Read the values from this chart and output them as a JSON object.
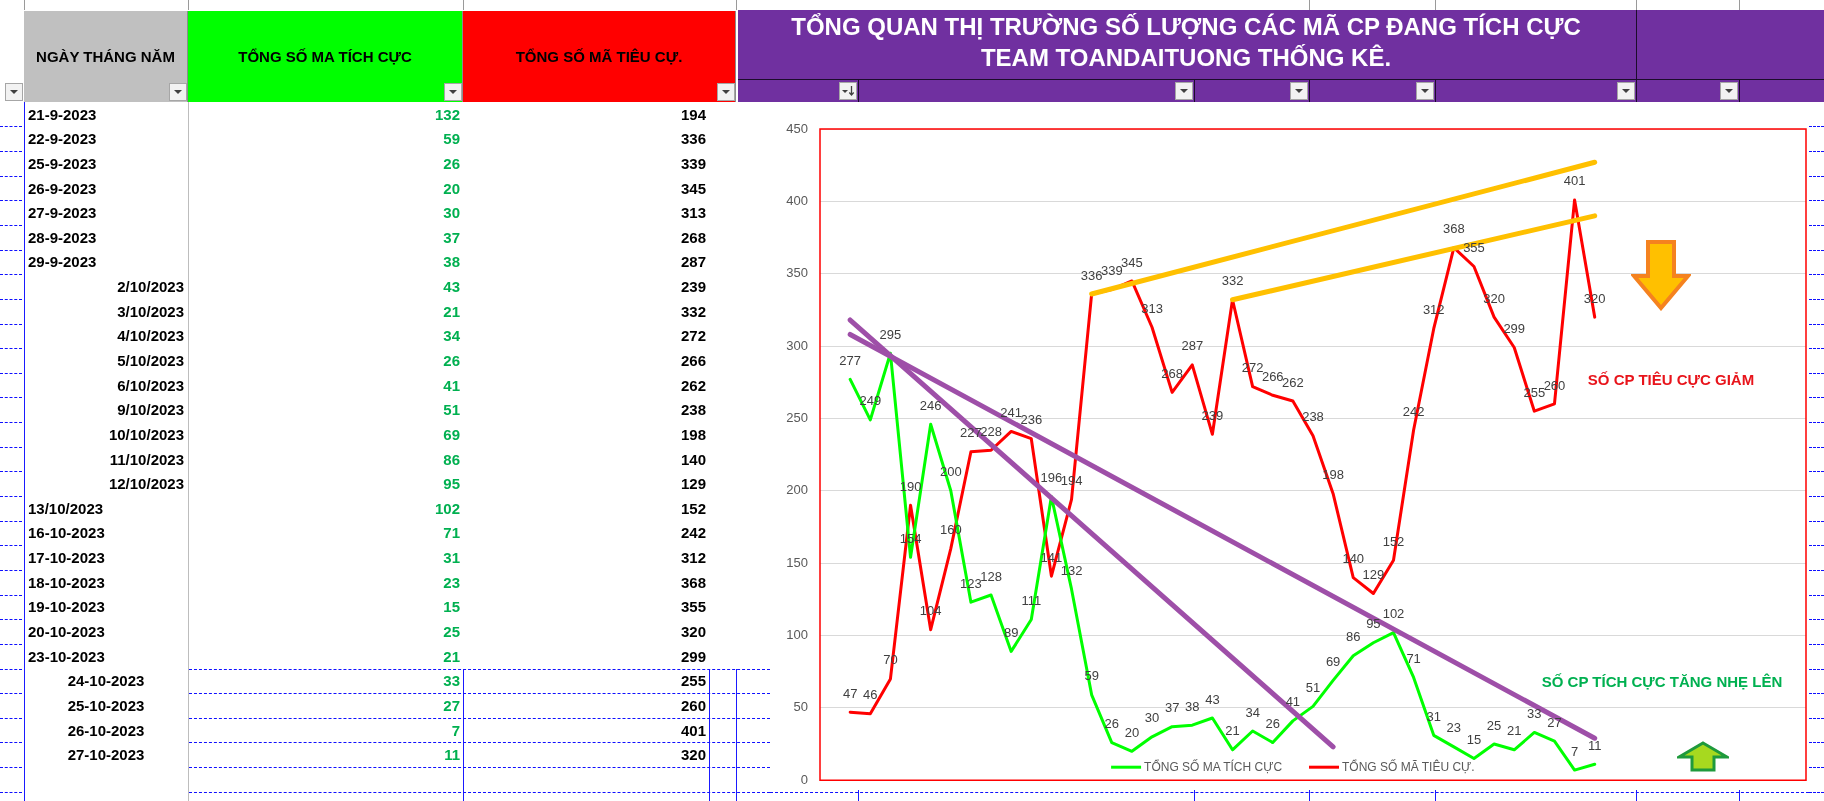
{
  "chart_data": [
    {
      "type": "other",
      "xlabel": "NGÀY THÁNG NĂM",
      "data_labels": true,
      "categories": [
        "21-9-2023",
        "22-9-2023",
        "25-9-2023",
        "26-9-2023",
        "27-9-2023",
        "28-9-2023",
        "29-9-2023",
        "2/10/2023",
        "3/10/2023",
        "4/10/2023",
        "5/10/2023",
        "6/10/2023",
        "9/10/2023",
        "10/10/2023",
        "11/10/2023",
        "12/10/2023",
        "13/10/2023",
        "16-10-2023",
        "17-10-2023",
        "18-10-2023",
        "19-10-2023",
        "20-10-2023",
        "23-10-2023",
        "24-10-2023",
        "25-10-2023",
        "26-10-2023",
        "27-10-2023"
      ],
      "series": [
        {
          "name": "TỔNG SỐ MA TÍCH CỰC",
          "values": [
            132,
            59,
            26,
            20,
            30,
            37,
            38,
            43,
            21,
            34,
            26,
            41,
            51,
            69,
            86,
            95,
            102,
            71,
            31,
            23,
            15,
            25,
            21,
            33,
            27,
            7,
            11
          ]
        },
        {
          "name": "TỔNG SỐ MÃ TIÊU CỰ.",
          "values": [
            194,
            336,
            339,
            345,
            313,
            268,
            287,
            239,
            332,
            272,
            266,
            262,
            238,
            198,
            140,
            129,
            152,
            242,
            312,
            368,
            355,
            320,
            299,
            255,
            260,
            401,
            320
          ]
        }
      ]
    },
    {
      "type": "line",
      "title": "TỔNG QUAN THỊ TRƯỜNG SỐ LƯỢNG CÁC MÃ CP ĐANG TÍCH CỰC",
      "subtitle": "TEAM TOANDAITUONG THỐNG KÊ.",
      "categories": [
        null,
        null,
        null,
        null,
        null,
        null,
        null,
        null,
        null,
        null,
        null,
        null,
        null,
        null,
        null,
        null,
        null,
        null,
        null,
        null,
        null,
        null,
        null,
        null,
        null,
        null,
        null,
        null,
        null,
        null,
        null,
        null,
        null,
        null,
        null,
        null,
        null,
        null
      ],
      "series": [
        {
          "name": "TỔNG SỐ MA TÍCH CỰC",
          "color": "#00ff00",
          "values": [
            277,
            249,
            295,
            154,
            246,
            200,
            123,
            128,
            89,
            111,
            196,
            132,
            59,
            26,
            20,
            30,
            37,
            38,
            43,
            21,
            34,
            26,
            41,
            51,
            69,
            86,
            95,
            102,
            71,
            31,
            23,
            15,
            25,
            21,
            33,
            27,
            7,
            11
          ],
          "value_labels": [
            "277",
            "249",
            "295",
            "154",
            "246",
            "200",
            "123",
            "128",
            "89",
            "111",
            "196",
            "132",
            "59",
            "26",
            "20",
            "30",
            "37",
            "38",
            "43",
            "21",
            "34",
            "26",
            "41",
            "51",
            "69",
            "86",
            "95",
            "102",
            "71",
            "31",
            "23",
            "15",
            "25",
            "21",
            "33",
            "27",
            "7",
            "11"
          ]
        },
        {
          "name": "TỔNG SỐ MÃ TIÊU CỰ.",
          "color": "#ff0000",
          "values": [
            47,
            46,
            70,
            190,
            104,
            160,
            227,
            228,
            241,
            236,
            141,
            194,
            336,
            339,
            345,
            313,
            268,
            287,
            239,
            332,
            272,
            266,
            262,
            238,
            198,
            140,
            129,
            152,
            242,
            312,
            368,
            355,
            320,
            299,
            255,
            260,
            401,
            320
          ],
          "value_labels": [
            "47",
            "46",
            "70",
            "190",
            "104",
            "160",
            "227",
            "228",
            "241",
            "236",
            "141",
            "194",
            "336",
            "339",
            "345",
            "313",
            "268",
            "287",
            "239",
            "332",
            "272",
            "266",
            "262",
            "238",
            "198",
            "140",
            "129",
            "152",
            "242",
            "312",
            "368",
            "355",
            "320",
            "299",
            "255",
            "260",
            "401",
            "320"
          ]
        },
        {
          "type": "line",
          "color": "#ffc000",
          "values": [
            null,
            null,
            null,
            null,
            null,
            null,
            null,
            null,
            null,
            null,
            null,
            null,
            336,
            null,
            null,
            null,
            null,
            null,
            null,
            null,
            null,
            null,
            null,
            null,
            null,
            null,
            null,
            null,
            null,
            null,
            null,
            null,
            null,
            null,
            null,
            null,
            null,
            427
          ]
        },
        {
          "type": "line",
          "color": "#ffc000",
          "values": [
            null,
            null,
            null,
            null,
            null,
            null,
            null,
            null,
            null,
            null,
            null,
            null,
            null,
            null,
            null,
            null,
            null,
            null,
            null,
            332,
            null,
            null,
            null,
            null,
            null,
            null,
            null,
            null,
            null,
            null,
            null,
            null,
            null,
            null,
            null,
            null,
            null,
            390
          ]
        },
        {
          "type": "line",
          "color": "#9e4fa8",
          "values": [
            308,
            null,
            null,
            null,
            null,
            null,
            null,
            null,
            null,
            null,
            null,
            null,
            null,
            null,
            null,
            null,
            null,
            null,
            null,
            null,
            null,
            null,
            null,
            null,
            null,
            null,
            null,
            null,
            null,
            null,
            null,
            null,
            null,
            null,
            null,
            null,
            null,
            29
          ]
        },
        {
          "type": "line",
          "color": "#9e4fa8",
          "values": [
            318,
            null,
            null,
            null,
            null,
            null,
            null,
            null,
            null,
            null,
            null,
            null,
            null,
            null,
            null,
            null,
            null,
            null,
            null,
            null,
            null,
            null,
            null,
            null,
            23,
            null,
            null,
            null,
            null,
            null,
            null,
            null,
            null,
            null,
            null,
            null,
            null,
            null
          ]
        }
      ],
      "ylim": [
        0,
        450
      ],
      "yticks": [
        0,
        50,
        100,
        150,
        200,
        250,
        300,
        350,
        400,
        450
      ],
      "grid": "y",
      "legend": "bottom",
      "marker": "none",
      "tick_labels": "y",
      "annotations": [
        "SỐ CP TIÊU CỰC GIẢM",
        "SỐ CP TÍCH CỰC TĂNG NHẸ LÊN"
      ]
    }
  ]
}
